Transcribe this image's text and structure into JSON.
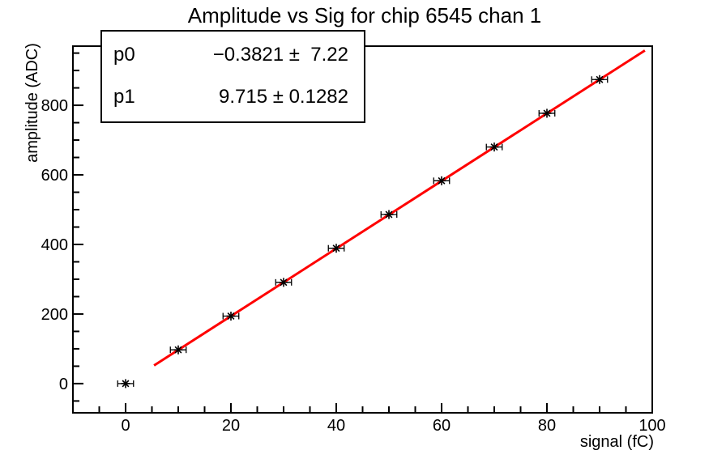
{
  "window": {
    "background": "#ffffff"
  },
  "chart_data": {
    "type": "scatter",
    "title": "Amplitude vs Sig for chip 6545 chan 1",
    "xlabel": "signal (fC)",
    "ylabel": "amplitude (ADC)",
    "xlim": [
      -10,
      100
    ],
    "ylim": [
      -84,
      970
    ],
    "grid": false,
    "x_axis": {
      "major_ticks": [
        0,
        20,
        40,
        60,
        80,
        100
      ],
      "minor_step": 5
    },
    "y_axis": {
      "major_ticks": [
        0,
        200,
        400,
        600,
        800
      ],
      "minor_step": 50
    },
    "series": [
      {
        "name": "amplitude-vs-signal-points",
        "marker": "asterisk",
        "color": "#000000",
        "x": [
          0,
          10,
          20,
          30,
          40,
          50,
          60,
          70,
          80,
          90
        ],
        "y": [
          0,
          97,
          194,
          291,
          389,
          486,
          583,
          680,
          777,
          874
        ],
        "x_err": 1.5
      }
    ],
    "fit": {
      "type": "linear",
      "expression": "y = p0 + p1*x",
      "p0": -0.3821,
      "p1": 9.715,
      "x_start": 5.4,
      "x_end": 98.6,
      "color": "#ff0000",
      "line_width": 3
    }
  },
  "stats_box": {
    "rows": [
      {
        "param": "p0",
        "value": "−0.3821 ±  7.22"
      },
      {
        "param": "p1",
        "value": "9.715 ± 0.1282"
      }
    ]
  }
}
